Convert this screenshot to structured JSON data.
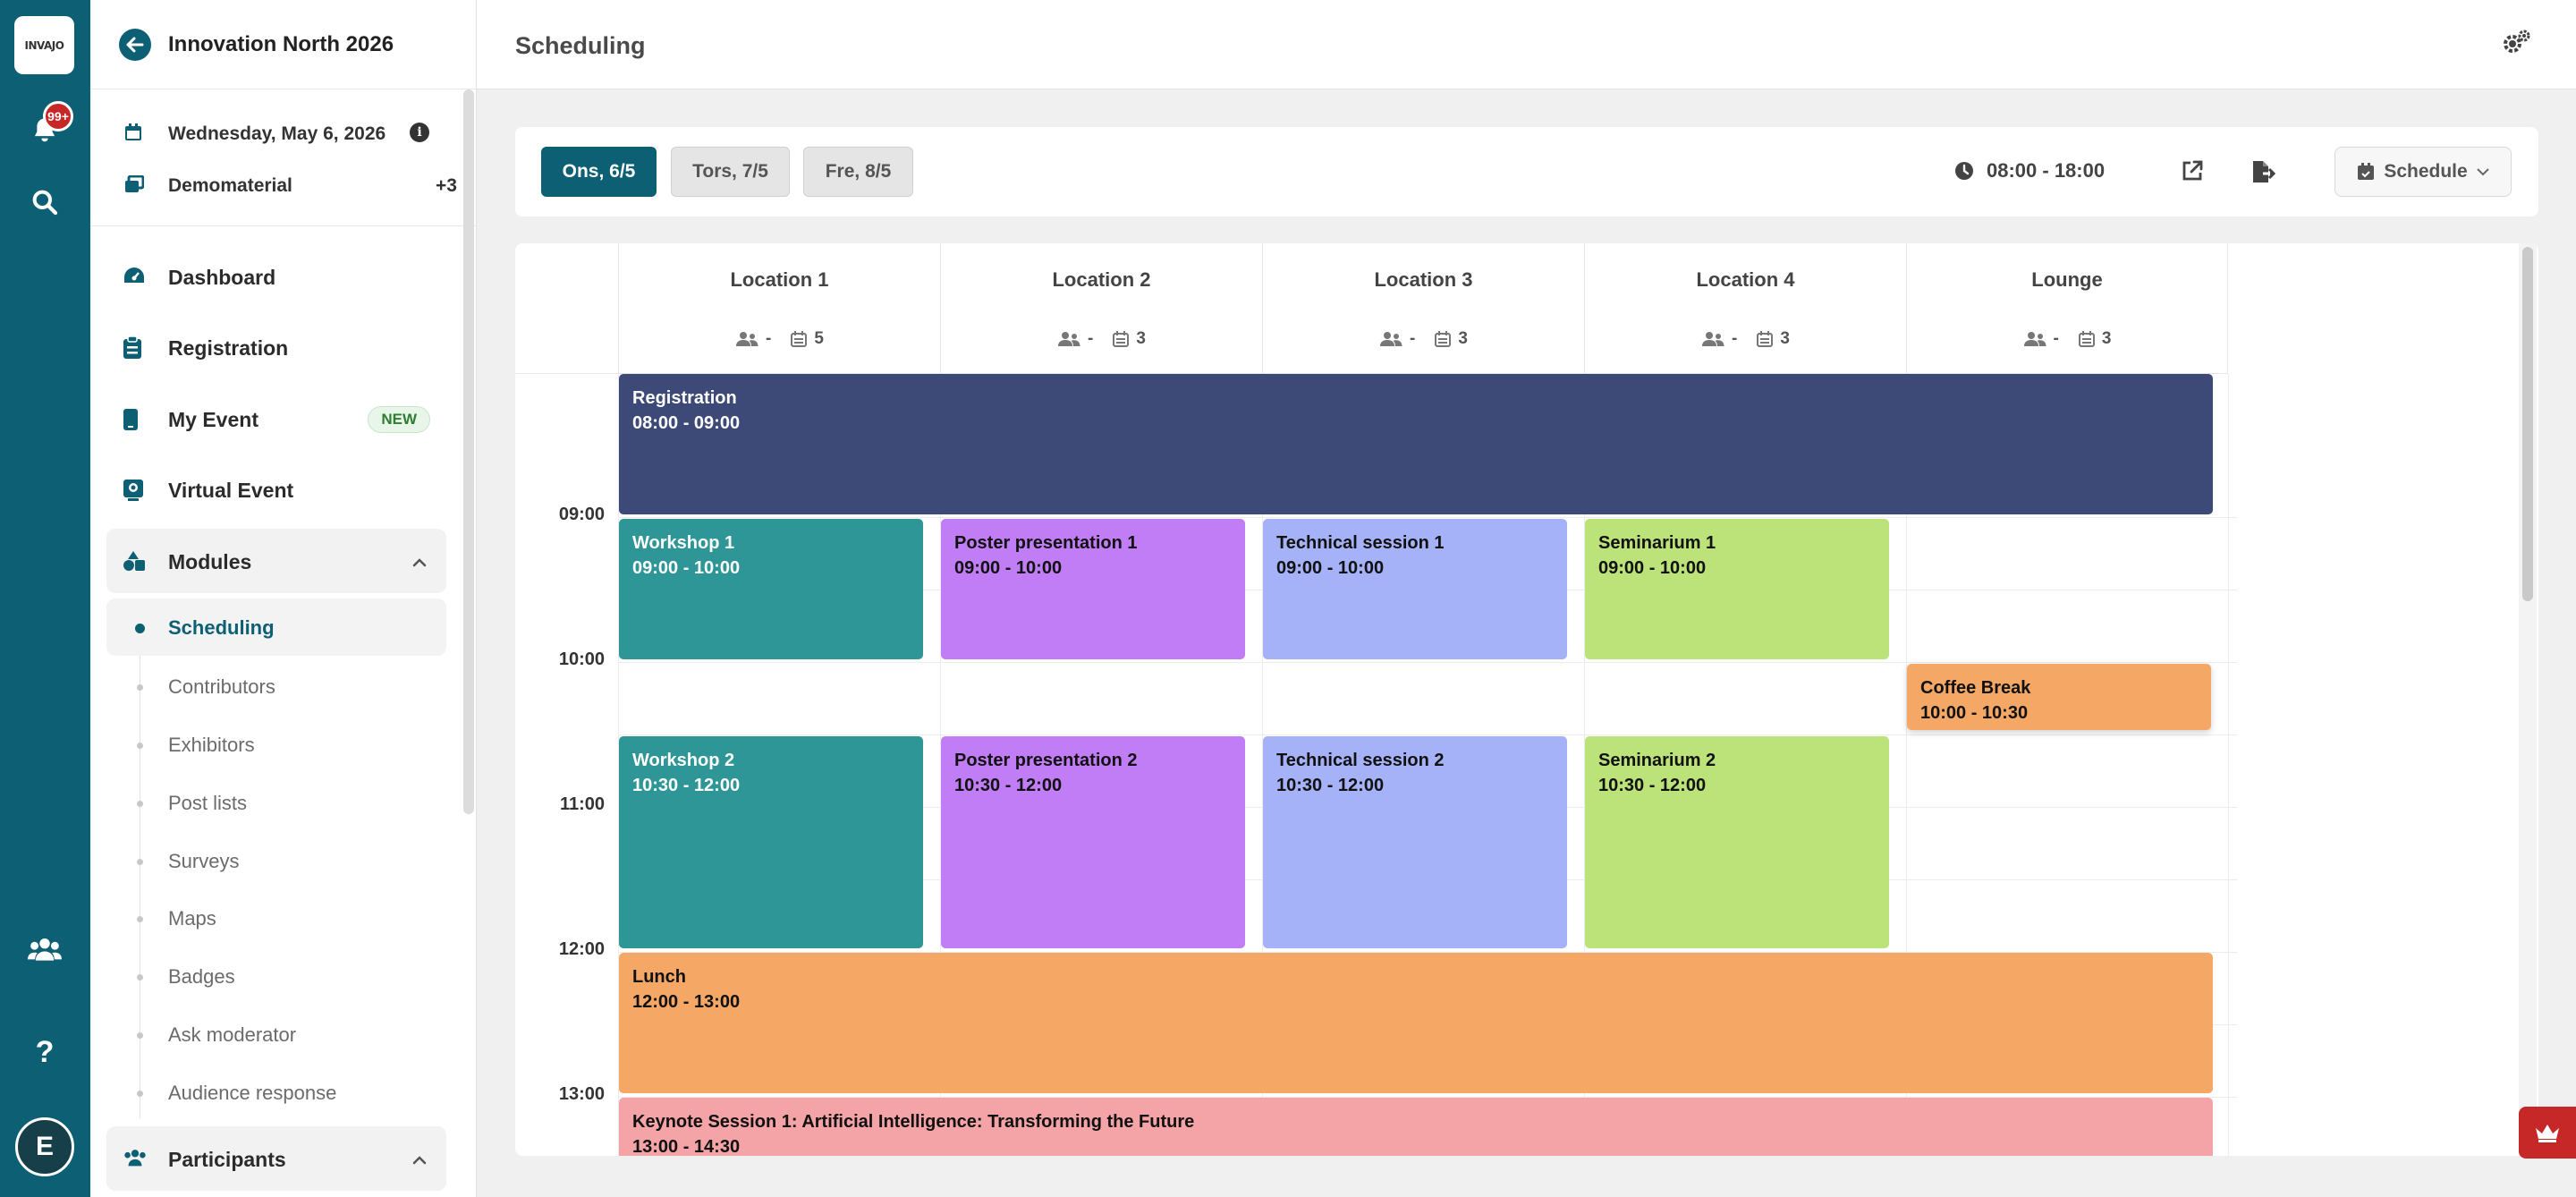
{
  "app": {
    "logo_text": "INVAJO",
    "notifications_badge": "99+",
    "user_initial": "E"
  },
  "sidebar": {
    "event_name": "Innovation North 2026",
    "date": "Wednesday, May 6, 2026",
    "material": "Demomaterial",
    "material_extra": "+3",
    "nav": {
      "dashboard": "Dashboard",
      "registration": "Registration",
      "my_event": "My Event",
      "my_event_badge": "NEW",
      "virtual_event": "Virtual Event",
      "modules": "Modules",
      "participants": "Participants"
    },
    "modules_items": [
      "Scheduling",
      "Contributors",
      "Exhibitors",
      "Post lists",
      "Surveys",
      "Maps",
      "Badges",
      "Ask moderator",
      "Audience response"
    ]
  },
  "header": {
    "title": "Scheduling"
  },
  "toolbar": {
    "days": [
      "Ons, 6/5",
      "Tors, 7/5",
      "Fre, 8/5"
    ],
    "active_day": "Ons, 6/5",
    "time_range": "08:00 - 18:00",
    "view_label": "Schedule"
  },
  "calendar": {
    "locations": [
      {
        "name": "Location 1",
        "people": "-",
        "count": "5"
      },
      {
        "name": "Location 2",
        "people": "-",
        "count": "3"
      },
      {
        "name": "Location 3",
        "people": "-",
        "count": "3"
      },
      {
        "name": "Location 4",
        "people": "-",
        "count": "3"
      },
      {
        "name": "Lounge",
        "people": "-",
        "count": "3"
      }
    ],
    "hours": [
      "09:00",
      "10:00",
      "11:00",
      "12:00",
      "13:00"
    ],
    "events": {
      "registration": {
        "title": "Registration",
        "time": "08:00 - 09:00"
      },
      "workshop1": {
        "title": "Workshop 1",
        "time": "09:00 - 10:00"
      },
      "poster1": {
        "title": "Poster presentation 1",
        "time": "09:00 - 10:00"
      },
      "tech1": {
        "title": "Technical session 1",
        "time": "09:00 - 10:00"
      },
      "seminar1": {
        "title": "Seminarium 1",
        "time": "09:00 - 10:00"
      },
      "coffee": {
        "title": "Coffee Break",
        "time": "10:00 - 10:30"
      },
      "workshop2": {
        "title": "Workshop 2",
        "time": "10:30 - 12:00"
      },
      "poster2": {
        "title": "Poster presentation 2",
        "time": "10:30 - 12:00"
      },
      "tech2": {
        "title": "Technical session 2",
        "time": "10:30 - 12:00"
      },
      "seminar2": {
        "title": "Seminarium 2",
        "time": "10:30 - 12:00"
      },
      "lunch": {
        "title": "Lunch",
        "time": "12:00 - 13:00"
      },
      "keynote": {
        "title": "Keynote Session 1: Artificial Intelligence: Transforming the Future",
        "time": "13:00 - 14:30"
      }
    }
  },
  "colors": {
    "brand": "#0d5f74",
    "registration": "#3d4a78",
    "workshop": "#2e9696",
    "poster": "#c17df5",
    "technical": "#a6b2f7",
    "seminar": "#bce27a",
    "break": "#f5a865",
    "keynote": "#f4a3a6"
  }
}
